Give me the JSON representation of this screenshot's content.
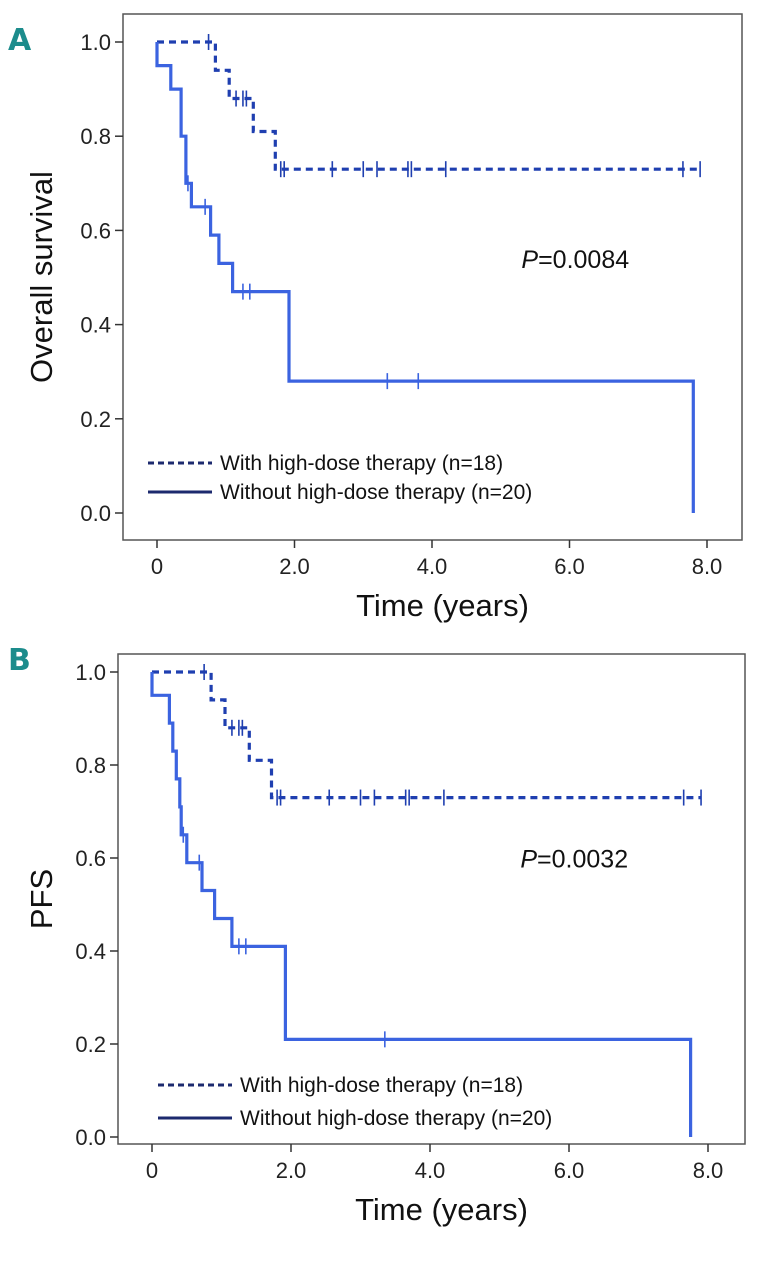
{
  "colors": {
    "accent": "#1c8c8c",
    "with_hdt": "#1f3fb0",
    "without_hdt": "#3b63e0",
    "legend_line": "#1c2a6e",
    "frame": "#555555"
  },
  "chart_data": [
    {
      "type": "line",
      "panel_label": "A",
      "title": "",
      "xlabel": "Time (years)",
      "ylabel": "Overall survival",
      "xlim": [
        -0.4,
        8.4
      ],
      "ylim": [
        -0.06,
        1.06
      ],
      "xticks": [
        0,
        2,
        4,
        6,
        8
      ],
      "xtick_labels": [
        "0",
        "2.0",
        "4.0",
        "6.0",
        "8.0"
      ],
      "yticks": [
        0,
        0.2,
        0.4,
        0.6,
        0.8,
        1.0
      ],
      "ytick_labels": [
        "0.0",
        "0.2",
        "0.4",
        "0.6",
        "0.8",
        "1.0"
      ],
      "grid": false,
      "legend_position": "bottom-left",
      "annotation": {
        "italic": "P",
        "text": "=0.0084",
        "x": 5.3,
        "y": 0.52
      },
      "series": [
        {
          "name": "With high-dose therapy (n=18)",
          "style": "dashed",
          "steps": [
            [
              0.0,
              1.0
            ],
            [
              0.85,
              1.0
            ],
            [
              0.85,
              0.94
            ],
            [
              1.05,
              0.94
            ],
            [
              1.05,
              0.88
            ],
            [
              1.4,
              0.88
            ],
            [
              1.4,
              0.81
            ],
            [
              1.72,
              0.81
            ],
            [
              1.72,
              0.73
            ],
            [
              7.9,
              0.73
            ]
          ],
          "censor_x": [
            0.75,
            1.15,
            1.25,
            1.3,
            1.8,
            1.85,
            2.55,
            3.0,
            3.2,
            3.65,
            3.7,
            4.2,
            7.65,
            7.9
          ]
        },
        {
          "name": "Without high-dose therapy (n=20)",
          "style": "solid",
          "steps": [
            [
              0.0,
              1.0
            ],
            [
              0.0,
              0.95
            ],
            [
              0.2,
              0.95
            ],
            [
              0.2,
              0.9
            ],
            [
              0.35,
              0.9
            ],
            [
              0.35,
              0.8
            ],
            [
              0.42,
              0.8
            ],
            [
              0.42,
              0.7
            ],
            [
              0.5,
              0.7
            ],
            [
              0.5,
              0.65
            ],
            [
              0.78,
              0.65
            ],
            [
              0.78,
              0.59
            ],
            [
              0.9,
              0.59
            ],
            [
              0.9,
              0.53
            ],
            [
              1.1,
              0.53
            ],
            [
              1.1,
              0.47
            ],
            [
              1.92,
              0.47
            ],
            [
              1.92,
              0.28
            ],
            [
              7.8,
              0.28
            ],
            [
              7.8,
              0.0
            ]
          ],
          "censor_x": [
            0.45,
            0.7,
            1.25,
            1.35,
            3.35,
            3.8
          ]
        }
      ]
    },
    {
      "type": "line",
      "panel_label": "B",
      "title": "",
      "xlabel": "Time (years)",
      "ylabel": "PFS",
      "xlim": [
        -0.4,
        8.4
      ],
      "ylim": [
        -0.06,
        1.06
      ],
      "xticks": [
        0,
        2,
        4,
        6,
        8
      ],
      "xtick_labels": [
        "0",
        "2.0",
        "4.0",
        "6.0",
        "8.0"
      ],
      "yticks": [
        0,
        0.2,
        0.4,
        0.6,
        0.8,
        1.0
      ],
      "ytick_labels": [
        "0.0",
        "0.2",
        "0.4",
        "0.6",
        "0.8",
        "1.0"
      ],
      "grid": false,
      "legend_position": "bottom-left",
      "annotation": {
        "italic": "P",
        "text": "=0.0032",
        "x": 5.3,
        "y": 0.58
      },
      "series": [
        {
          "name": "With high-dose therapy (n=18)",
          "style": "dashed",
          "steps": [
            [
              0.0,
              1.0
            ],
            [
              0.85,
              1.0
            ],
            [
              0.85,
              0.94
            ],
            [
              1.05,
              0.94
            ],
            [
              1.05,
              0.88
            ],
            [
              1.4,
              0.88
            ],
            [
              1.4,
              0.81
            ],
            [
              1.72,
              0.81
            ],
            [
              1.72,
              0.73
            ],
            [
              7.9,
              0.73
            ]
          ],
          "censor_x": [
            0.75,
            1.15,
            1.25,
            1.3,
            1.8,
            1.85,
            2.55,
            3.0,
            3.2,
            3.65,
            3.7,
            4.2,
            7.65,
            7.9
          ]
        },
        {
          "name": "Without high-dose therapy (n=20)",
          "style": "solid",
          "steps": [
            [
              0.0,
              1.0
            ],
            [
              0.0,
              0.95
            ],
            [
              0.25,
              0.95
            ],
            [
              0.25,
              0.89
            ],
            [
              0.3,
              0.89
            ],
            [
              0.3,
              0.83
            ],
            [
              0.35,
              0.83
            ],
            [
              0.35,
              0.77
            ],
            [
              0.4,
              0.77
            ],
            [
              0.4,
              0.71
            ],
            [
              0.42,
              0.71
            ],
            [
              0.42,
              0.65
            ],
            [
              0.5,
              0.65
            ],
            [
              0.5,
              0.59
            ],
            [
              0.72,
              0.59
            ],
            [
              0.72,
              0.53
            ],
            [
              0.9,
              0.53
            ],
            [
              0.9,
              0.47
            ],
            [
              1.15,
              0.47
            ],
            [
              1.15,
              0.41
            ],
            [
              1.92,
              0.41
            ],
            [
              1.92,
              0.21
            ],
            [
              7.75,
              0.21
            ],
            [
              7.75,
              0.0
            ]
          ],
          "censor_x": [
            0.45,
            0.68,
            1.25,
            1.35,
            3.35
          ]
        }
      ]
    }
  ]
}
